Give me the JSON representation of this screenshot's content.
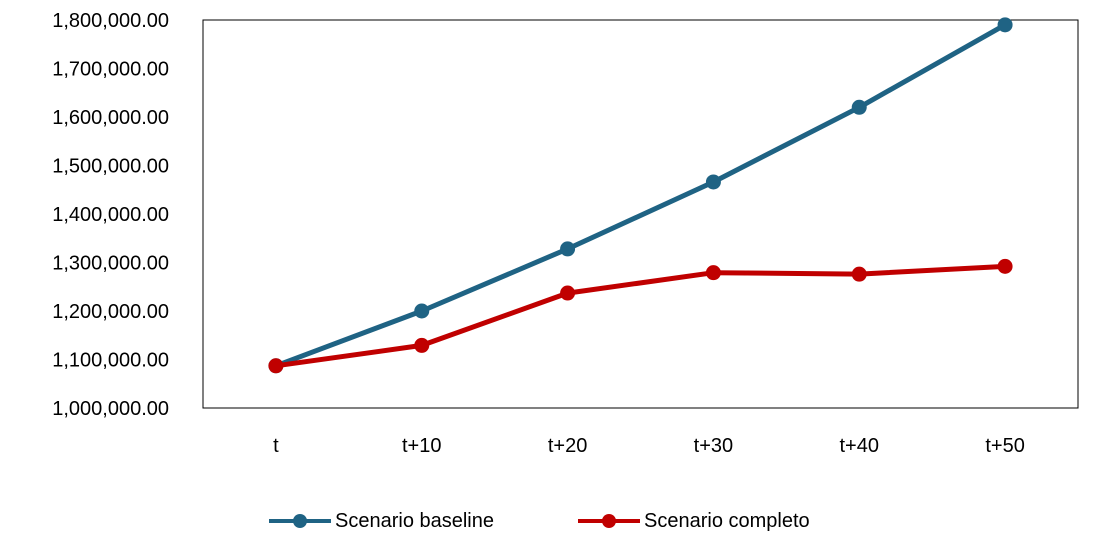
{
  "chart_data": {
    "type": "line",
    "title": "",
    "xlabel": "",
    "ylabel": "",
    "categories": [
      "t",
      "t+10",
      "t+20",
      "t+30",
      "t+40",
      "t+50"
    ],
    "ylim": [
      1000000,
      1800000
    ],
    "yticks": [
      1000000,
      1100000,
      1200000,
      1300000,
      1400000,
      1500000,
      1600000,
      1700000,
      1800000
    ],
    "ytick_labels": [
      "1,000,000.00",
      "1,100,000.00",
      "1,200,000.00",
      "1,300,000.00",
      "1,400,000.00",
      "1,500,000.00",
      "1,600,000.00",
      "1,700,000.00",
      "1,800,000.00"
    ],
    "grid": false,
    "legend_position": "bottom",
    "series": [
      {
        "name": "Scenario baseline",
        "color": "#1F6384",
        "values": [
          1087000,
          1200000,
          1328000,
          1466000,
          1620000,
          1790000
        ]
      },
      {
        "name": "Scenario completo",
        "color": "#C00000",
        "values": [
          1087000,
          1129000,
          1237000,
          1279000,
          1276000,
          1292000
        ]
      }
    ]
  }
}
